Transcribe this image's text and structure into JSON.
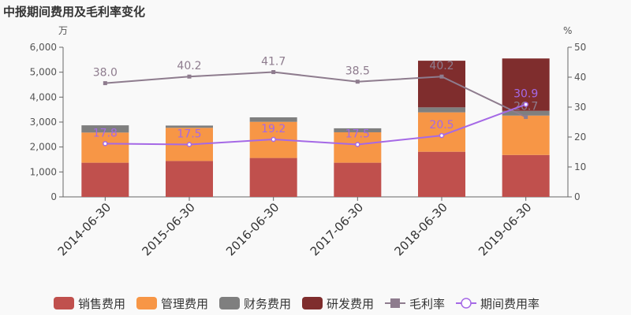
{
  "chart_data": {
    "type": "bar",
    "title": "中报期间费用及毛利率变化",
    "y_left_unit": "万",
    "y_right_unit": "%",
    "categories": [
      "2014-06-30",
      "2015-06-30",
      "2016-06-30",
      "2017-06-30",
      "2018-06-30",
      "2019-06-30"
    ],
    "ylim_left": [
      0,
      6000
    ],
    "ylim_right": [
      0,
      50
    ],
    "yticks_left": [
      "0",
      "1,000",
      "2,000",
      "3,000",
      "4,000",
      "5,000",
      "6,000"
    ],
    "yticks_right": [
      "0",
      "10",
      "20",
      "30",
      "40",
      "50"
    ],
    "bar_series": [
      {
        "name": "销售费用",
        "color": "#c0504d",
        "values": [
          1370,
          1440,
          1560,
          1370,
          1810,
          1680
        ]
      },
      {
        "name": "管理费用",
        "color": "#f79646",
        "values": [
          1210,
          1330,
          1450,
          1220,
          1580,
          1580
        ]
      },
      {
        "name": "财务费用",
        "color": "#7f7f7f",
        "values": [
          290,
          90,
          180,
          160,
          200,
          190
        ]
      },
      {
        "name": "研发费用",
        "color": "#7f2d2d",
        "values": [
          0,
          0,
          0,
          0,
          1870,
          2100
        ]
      }
    ],
    "line_series": [
      {
        "name": "毛利率",
        "color": "#8e7c8e",
        "marker": "square",
        "values": [
          38.0,
          40.2,
          41.7,
          38.5,
          40.2,
          26.7
        ],
        "labels": [
          "38.0",
          "40.2",
          "41.7",
          "38.5",
          "40.2",
          "26.7"
        ]
      },
      {
        "name": "期间费用率",
        "color": "#a569e6",
        "marker": "circle",
        "values": [
          17.8,
          17.5,
          19.2,
          17.5,
          20.5,
          30.9
        ],
        "labels": [
          "17.8",
          "17.5",
          "19.2",
          "17.5",
          "20.5",
          "30.9"
        ]
      }
    ],
    "legend_position": "bottom",
    "grid": false
  }
}
